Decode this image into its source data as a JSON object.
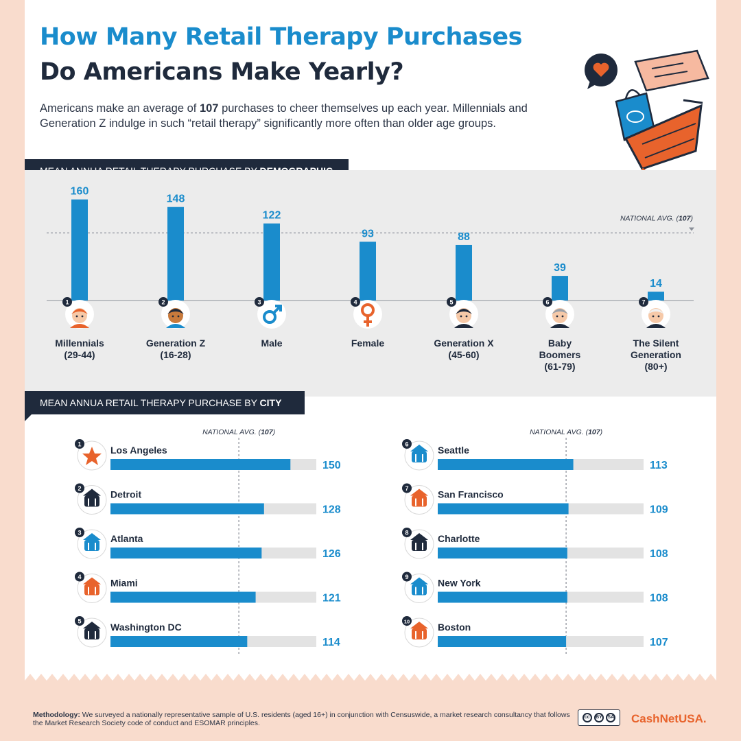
{
  "title": {
    "line1": "How Many Retail Therapy Purchases",
    "line2": "Do Americans Make Yearly?"
  },
  "intro": {
    "before": "Americans make an average of ",
    "bold": "107",
    "after": " purchases to cheer themselves up each year. Millennials and Generation Z indulge in such “retail therapy” significantly more often than older age groups."
  },
  "colors": {
    "accent_blue": "#1a8ccc",
    "navy": "#1f2a3c",
    "orange": "#e8632c",
    "peach": "#f9dccd",
    "track_gray": "#e3e3e3",
    "panel_gray": "#ececec"
  },
  "sections": {
    "demographic": {
      "prefix": "MEAN ANNUA RETAIL THERAPY PURCHASE BY ",
      "bold": "DEMOGRAPHIC"
    },
    "city": {
      "prefix": "MEAN ANNUA RETAIL THERAPY PURCHASE BY ",
      "bold": "CITY"
    }
  },
  "chart_data": [
    {
      "type": "bar",
      "title": "MEAN ANNUA RETAIL THERAPY PURCHASE BY DEMOGRAPHIC",
      "categories": [
        [
          "Millennials",
          "(29-44)"
        ],
        [
          "Generation Z",
          "(16-28)"
        ],
        [
          "Male"
        ],
        [
          "Female"
        ],
        [
          "Generation X",
          "(45-60)"
        ],
        [
          "Baby",
          "Boomers",
          "(61-79)"
        ],
        [
          "The Silent",
          "Generation",
          "(80+)"
        ]
      ],
      "ranks": [
        "1",
        "2",
        "3",
        "4",
        "5",
        "6",
        "7"
      ],
      "icons": [
        "millennial-avatar-icon",
        "gen-z-avatar-icon",
        "male-symbol-icon",
        "female-symbol-icon",
        "gen-x-avatar-icon",
        "boomer-avatar-icon",
        "silent-generation-avatar-icon"
      ],
      "values": [
        160,
        148,
        122,
        93,
        88,
        39,
        14
      ],
      "reference_line": {
        "value": 107,
        "label_prefix": "NATIONAL AVG. (",
        "label_bold": "107",
        "label_suffix": ")"
      },
      "ylim": [
        0,
        190
      ],
      "grid": false
    },
    {
      "type": "bar",
      "orientation": "horizontal",
      "title": "MEAN ANNUA RETAIL THERAPY PURCHASE BY CITY",
      "categories": [
        "Los Angeles",
        "Detroit",
        "Atlanta",
        "Miami",
        "Washington DC",
        "Seattle",
        "San Francisco",
        "Charlotte",
        "New York",
        "Boston"
      ],
      "ranks": [
        "1",
        "2",
        "3",
        "4",
        "5",
        "6",
        "7",
        "8",
        "9",
        "10"
      ],
      "icons": [
        "hollywood-star-icon",
        "detroit-monument-icon",
        "atlanta-stadium-icon",
        "miami-ball-icon",
        "capitol-dome-icon",
        "space-needle-icon",
        "golden-gate-bridge-icon",
        "charlotte-icon",
        "statue-of-liberty-icon",
        "boston-building-icon"
      ],
      "values": [
        150,
        128,
        126,
        121,
        114,
        113,
        109,
        108,
        108,
        107
      ],
      "reference_line": {
        "value": 107,
        "label_prefix": "NATIONAL AVG. (",
        "label_bold": "107",
        "label_suffix": ")"
      },
      "xlim": [
        0,
        175
      ],
      "grid": false
    }
  ],
  "footer": {
    "method_label": "Methodology:",
    "method_text": " We surveyed a nationally representative sample of U.S. residents (aged 16+) in conjunction with Censuswide, a market research consultancy that follows the Market Research Society code of conduct and ESOMAR principles.",
    "license_badge": [
      "cc",
      "BY",
      "SA"
    ],
    "brand": "CashNetUSA."
  },
  "hero_icon": "shopping-cart-illustration-icon"
}
